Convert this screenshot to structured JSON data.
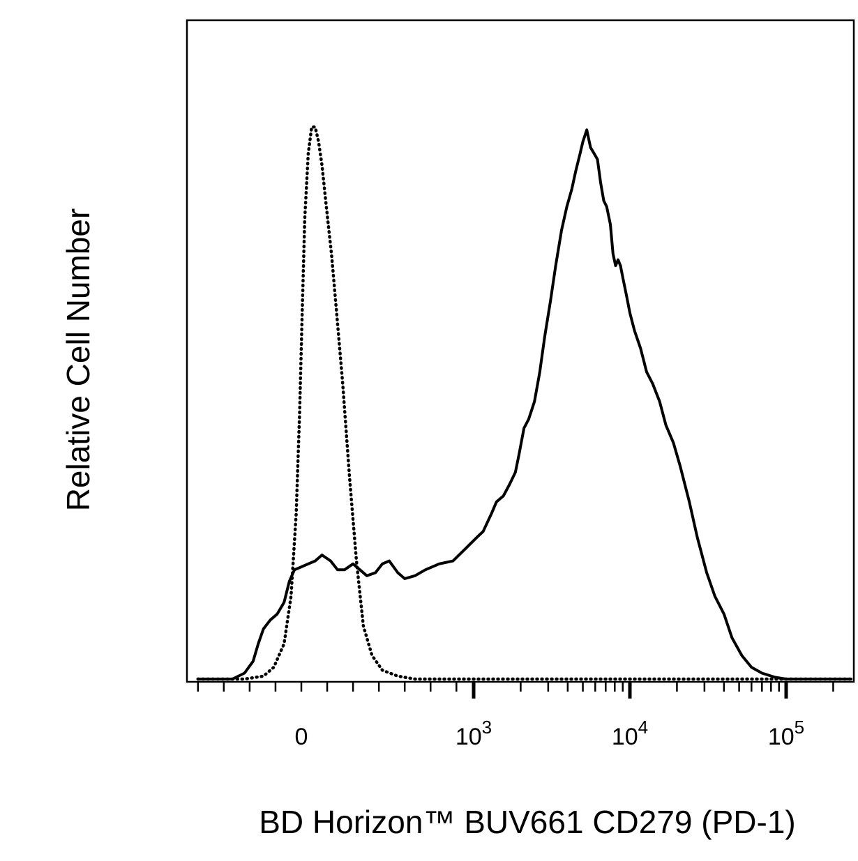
{
  "chart_data": {
    "type": "line",
    "title": "",
    "xlabel": "BD Horizon™ BUV661 CD279 (PD-1)",
    "ylabel": "Relative Cell Number",
    "x_scale": "biexponential",
    "x_tick_labels": [
      {
        "value": 0,
        "base": "0",
        "exp": ""
      },
      {
        "value": 1000,
        "base": "10",
        "exp": "3"
      },
      {
        "value": 10000,
        "base": "10",
        "exp": "4"
      },
      {
        "value": 100000,
        "base": "10",
        "exp": "5"
      }
    ],
    "xlim": [
      -600,
      260000
    ],
    "ylim": [
      0,
      100
    ],
    "grid": false,
    "legend": "none",
    "series": [
      {
        "style": "dotted",
        "color": "#000000",
        "points": [
          [
            -600,
            0
          ],
          [
            -330,
            0
          ],
          [
            -220,
            0.5
          ],
          [
            -160,
            2
          ],
          [
            -100,
            6
          ],
          [
            -60,
            14
          ],
          [
            -30,
            28
          ],
          [
            -10,
            45
          ],
          [
            5,
            62
          ],
          [
            20,
            78
          ],
          [
            40,
            89
          ],
          [
            60,
            93.5
          ],
          [
            80,
            93.5
          ],
          [
            100,
            91
          ],
          [
            120,
            87
          ],
          [
            145,
            80
          ],
          [
            175,
            72
          ],
          [
            205,
            62
          ],
          [
            240,
            50
          ],
          [
            280,
            34
          ],
          [
            320,
            20
          ],
          [
            360,
            9
          ],
          [
            410,
            4
          ],
          [
            470,
            1.5
          ],
          [
            560,
            0.5
          ],
          [
            660,
            0
          ],
          [
            1000,
            0
          ],
          [
            10000,
            0
          ],
          [
            260000,
            0
          ]
        ]
      },
      {
        "style": "solid",
        "color": "#000000",
        "points": [
          [
            -600,
            0
          ],
          [
            -400,
            0
          ],
          [
            -330,
            1
          ],
          [
            -280,
            3
          ],
          [
            -250,
            6
          ],
          [
            -220,
            8.5
          ],
          [
            -180,
            10
          ],
          [
            -140,
            11
          ],
          [
            -100,
            13
          ],
          [
            -70,
            16.5
          ],
          [
            -40,
            18.5
          ],
          [
            0,
            19
          ],
          [
            40,
            19.5
          ],
          [
            80,
            20
          ],
          [
            120,
            21
          ],
          [
            170,
            20
          ],
          [
            210,
            18.5
          ],
          [
            250,
            18.5
          ],
          [
            300,
            19.5
          ],
          [
            340,
            18.5
          ],
          [
            380,
            17.5
          ],
          [
            430,
            18
          ],
          [
            470,
            19.5
          ],
          [
            510,
            20
          ],
          [
            560,
            18
          ],
          [
            600,
            17
          ],
          [
            660,
            17.5
          ],
          [
            720,
            18.5
          ],
          [
            800,
            19.5
          ],
          [
            880,
            20
          ],
          [
            950,
            22
          ],
          [
            1050,
            24
          ],
          [
            1150,
            25
          ],
          [
            1300,
            28
          ],
          [
            1400,
            30
          ],
          [
            1550,
            31
          ],
          [
            1700,
            33
          ],
          [
            1850,
            35
          ],
          [
            1950,
            38
          ],
          [
            2100,
            42.5
          ],
          [
            2250,
            44
          ],
          [
            2450,
            47
          ],
          [
            2650,
            52
          ],
          [
            2850,
            58
          ],
          [
            3100,
            64
          ],
          [
            3350,
            70
          ],
          [
            3650,
            76
          ],
          [
            3950,
            80
          ],
          [
            4250,
            83
          ],
          [
            4500,
            86
          ],
          [
            4800,
            89
          ],
          [
            5000,
            91
          ],
          [
            5300,
            93
          ],
          [
            5600,
            90
          ],
          [
            5900,
            89
          ],
          [
            6200,
            88
          ],
          [
            6500,
            84
          ],
          [
            6800,
            81
          ],
          [
            7100,
            80
          ],
          [
            7500,
            77
          ],
          [
            7800,
            72
          ],
          [
            8100,
            70
          ],
          [
            8400,
            71
          ],
          [
            8700,
            70
          ],
          [
            9000,
            68
          ],
          [
            9500,
            65
          ],
          [
            10000,
            62
          ],
          [
            10700,
            59
          ],
          [
            11700,
            56
          ],
          [
            12800,
            52
          ],
          [
            14000,
            50
          ],
          [
            15500,
            47
          ],
          [
            17000,
            43
          ],
          [
            19000,
            40
          ],
          [
            21000,
            36
          ],
          [
            24000,
            30
          ],
          [
            27000,
            24
          ],
          [
            31000,
            18
          ],
          [
            35000,
            14
          ],
          [
            40000,
            11
          ],
          [
            45000,
            7
          ],
          [
            52000,
            4
          ],
          [
            60000,
            2
          ],
          [
            70000,
            1
          ],
          [
            85000,
            0.3
          ],
          [
            100000,
            0
          ],
          [
            260000,
            0
          ]
        ]
      }
    ]
  }
}
